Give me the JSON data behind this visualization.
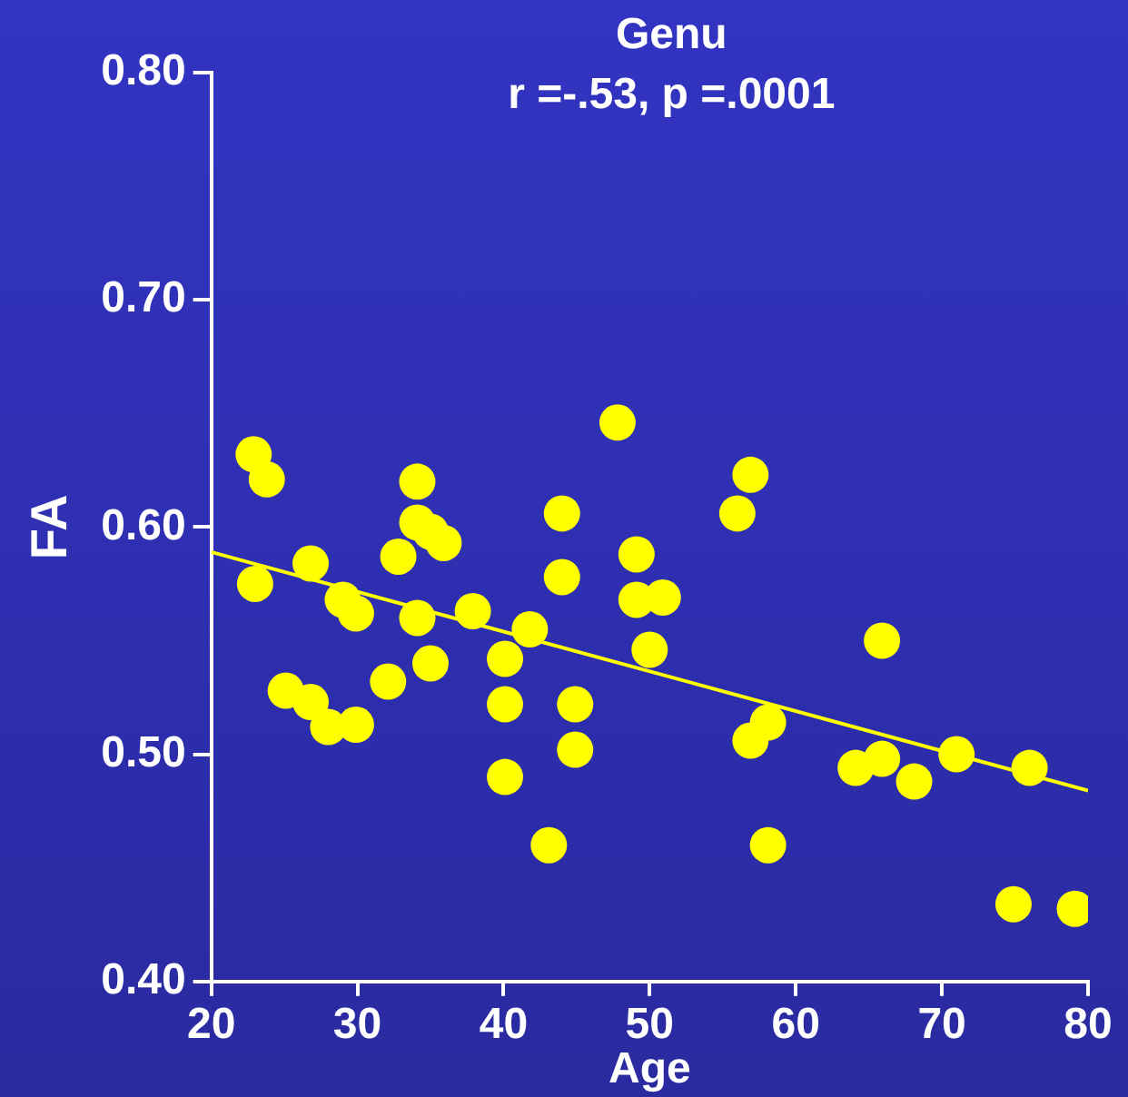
{
  "chart_data": {
    "type": "scatter",
    "title": "Genu",
    "subtitle": "r =-.53, p =.0001",
    "xlabel": "Age",
    "ylabel": "FA",
    "xlim": [
      20,
      80
    ],
    "xticks": [
      20,
      30,
      40,
      50,
      60,
      70,
      80
    ],
    "ylim": [
      0.4,
      0.8
    ],
    "yticks": [
      {
        "value": 0.4,
        "label": "0.40"
      },
      {
        "value": 0.5,
        "label": "0.50"
      },
      {
        "value": 0.6,
        "label": "0.60"
      },
      {
        "value": 0.7,
        "label": "0.70"
      },
      {
        "value": 0.8,
        "label": "0.80"
      }
    ],
    "grid": false,
    "legend": false,
    "marker": "circle",
    "series": [
      {
        "color": "#ffff00",
        "x": [
          22.9,
          23.8,
          23,
          26.8,
          25.1,
          26.8,
          29,
          29.9,
          28,
          29.9,
          32.1,
          32.8,
          34.1,
          34.1,
          35,
          35.9,
          34.1,
          35,
          37.9,
          40.1,
          40.1,
          40.1,
          41.8,
          43.1,
          44,
          44,
          44.9,
          44.9,
          47.8,
          49.1,
          49.1,
          50.9,
          50,
          56,
          56.9,
          56.9,
          58.1,
          58.1,
          64.1,
          65.9,
          65.9,
          68.1,
          71,
          74.9,
          76,
          79.1
        ],
        "values": [
          0.632,
          0.621,
          0.575,
          0.584,
          0.528,
          0.523,
          0.568,
          0.562,
          0.512,
          0.513,
          0.532,
          0.587,
          0.62,
          0.602,
          0.598,
          0.593,
          0.56,
          0.54,
          0.563,
          0.542,
          0.522,
          0.49,
          0.555,
          0.46,
          0.606,
          0.578,
          0.522,
          0.502,
          0.646,
          0.588,
          0.568,
          0.569,
          0.546,
          0.606,
          0.623,
          0.506,
          0.514,
          0.46,
          0.494,
          0.498,
          0.55,
          0.488,
          0.5,
          0.434,
          0.494,
          0.432
        ]
      },
      {
        "type": "line",
        "marker": "none",
        "color": "#ffff00",
        "x": [
          20,
          80
        ],
        "values": [
          0.589,
          0.484
        ]
      }
    ]
  }
}
